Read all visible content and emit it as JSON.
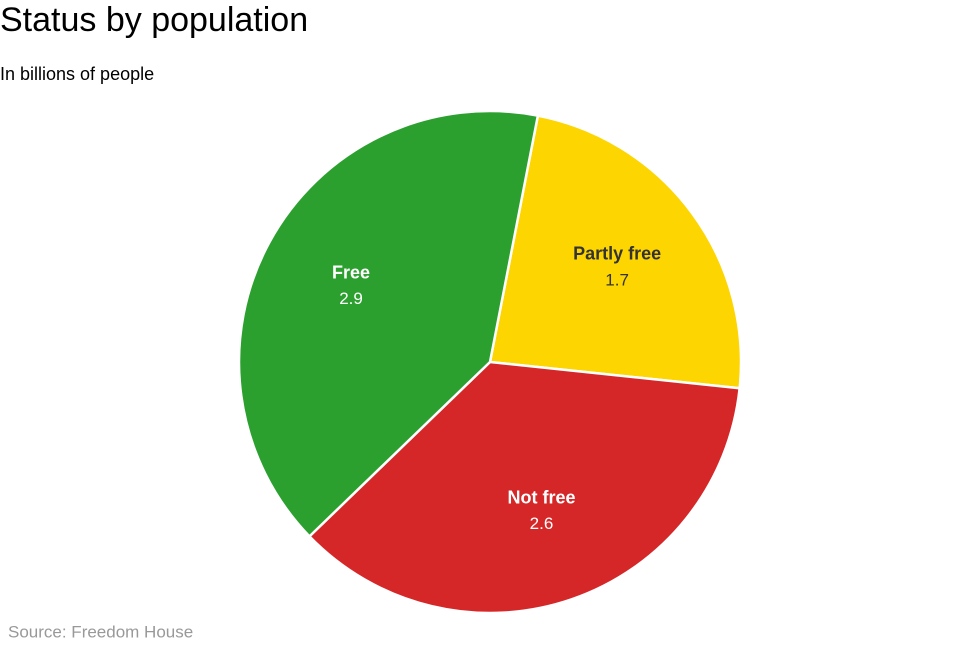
{
  "chart_data": {
    "type": "pie",
    "title": "Status by population",
    "subtitle": "In billions of people",
    "categories": [
      "Partly free",
      "Not free",
      "Free"
    ],
    "values": [
      1.7,
      2.6,
      2.9
    ],
    "colors": [
      "#fdd500",
      "#d62728",
      "#2ca02f"
    ],
    "label_colors": [
      "#333333",
      "#ffffff",
      "#ffffff"
    ],
    "source": "Source: Freedom House"
  }
}
